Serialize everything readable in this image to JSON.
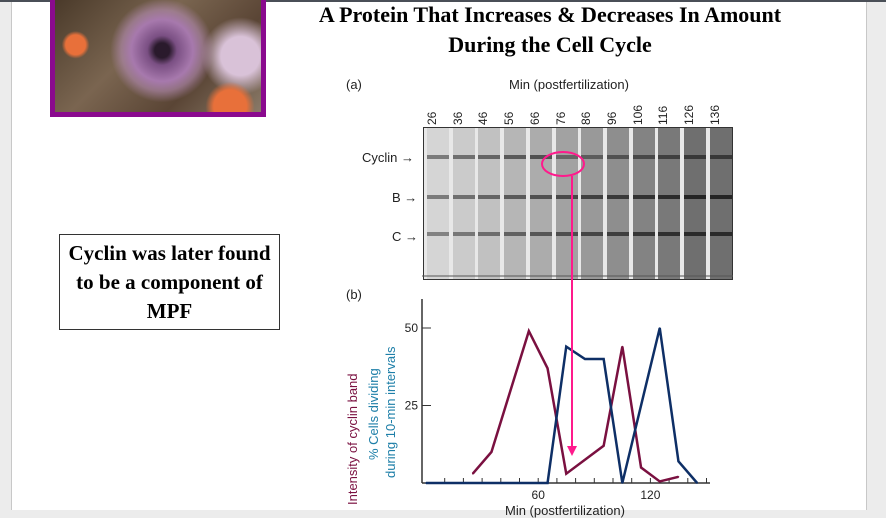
{
  "slide": {
    "title_line1": "A Protein That Increases & Decreases In Amount",
    "title_line2": "During the Cell Cycle",
    "note": "Cyclin was later found to be a component of MPF"
  },
  "figure_a": {
    "panel_label": "(a)",
    "header": "Min (postfertilization)",
    "lanes": [
      "26",
      "36",
      "46",
      "56",
      "66",
      "76",
      "86",
      "96",
      "106",
      "116",
      "126",
      "136"
    ],
    "band_labels": {
      "cyclin": "Cyclin →",
      "b": "B →",
      "c": "C →"
    }
  },
  "chart_data": {
    "type": "line",
    "panel_label": "(b)",
    "xlabel": "Min (postfertilization)",
    "ylabel_1": "Intensity of cyclin band",
    "ylabel_2a": "% Cells dividing",
    "ylabel_2b": "during 10-min intervals",
    "xlim": [
      0,
      150
    ],
    "ylim": [
      0,
      60
    ],
    "x_ticks": [
      "60",
      "120"
    ],
    "x_tick_values": [
      60,
      120
    ],
    "y_ticks": [
      "25",
      "50"
    ],
    "y_tick_values": [
      25,
      50
    ],
    "series": [
      {
        "color": "#7a1040",
        "x": [
          25,
          35,
          55,
          65,
          75,
          95,
          105,
          115,
          125,
          135
        ],
        "y": [
          3,
          10,
          49,
          37,
          3,
          12,
          44,
          5,
          0.5,
          2
        ]
      },
      {
        "color": "#0e2f66",
        "x": [
          0,
          65,
          75,
          85,
          95,
          105,
          125,
          135,
          145
        ],
        "y": [
          0,
          0,
          44,
          40,
          40,
          0,
          50,
          7,
          0
        ]
      }
    ],
    "annotation_color": "#ff1a8c"
  }
}
